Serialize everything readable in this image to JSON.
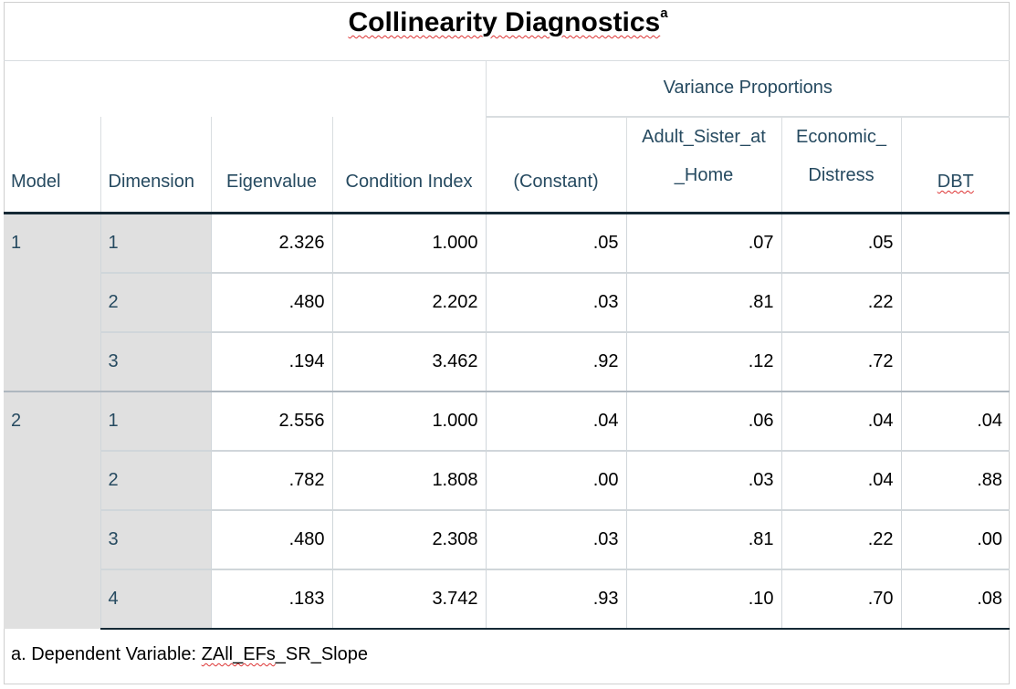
{
  "title": "Collinearity Diagnostics",
  "title_superscript": "a",
  "headers": {
    "group": "Variance Proportions",
    "model": "Model",
    "dimension": "Dimension",
    "eigenvalue": "Eigenvalue",
    "condition_index": "Condition Index",
    "constant": "(Constant)",
    "adult_sister_line1": "Adult_Sister_at",
    "adult_sister_line2": "_Home",
    "economic_line1": "Economic_",
    "economic_line2": "Distress",
    "dbt": "DBT"
  },
  "models": [
    {
      "model": "1",
      "rows": [
        {
          "dimension": "1",
          "eigenvalue": "2.326",
          "condition_index": "1.000",
          "constant": ".05",
          "adult_sister": ".07",
          "economic": ".05",
          "dbt": ""
        },
        {
          "dimension": "2",
          "eigenvalue": ".480",
          "condition_index": "2.202",
          "constant": ".03",
          "adult_sister": ".81",
          "economic": ".22",
          "dbt": ""
        },
        {
          "dimension": "3",
          "eigenvalue": ".194",
          "condition_index": "3.462",
          "constant": ".92",
          "adult_sister": ".12",
          "economic": ".72",
          "dbt": ""
        }
      ]
    },
    {
      "model": "2",
      "rows": [
        {
          "dimension": "1",
          "eigenvalue": "2.556",
          "condition_index": "1.000",
          "constant": ".04",
          "adult_sister": ".06",
          "economic": ".04",
          "dbt": ".04"
        },
        {
          "dimension": "2",
          "eigenvalue": ".782",
          "condition_index": "1.808",
          "constant": ".00",
          "adult_sister": ".03",
          "economic": ".04",
          "dbt": ".88"
        },
        {
          "dimension": "3",
          "eigenvalue": ".480",
          "condition_index": "2.308",
          "constant": ".03",
          "adult_sister": ".81",
          "economic": ".22",
          "dbt": ".00"
        },
        {
          "dimension": "4",
          "eigenvalue": ".183",
          "condition_index": "3.742",
          "constant": ".93",
          "adult_sister": ".10",
          "economic": ".70",
          "dbt": ".08"
        }
      ]
    }
  ],
  "footnote_prefix": "a. Dependent Variable: ",
  "footnote_var_part1": "ZAll_EFs",
  "footnote_var_part2": "_SR_Slope",
  "colors": {
    "header_text": "#264a60",
    "shaded_cell": "#e0e0e0",
    "strong_rule": "#152935"
  }
}
